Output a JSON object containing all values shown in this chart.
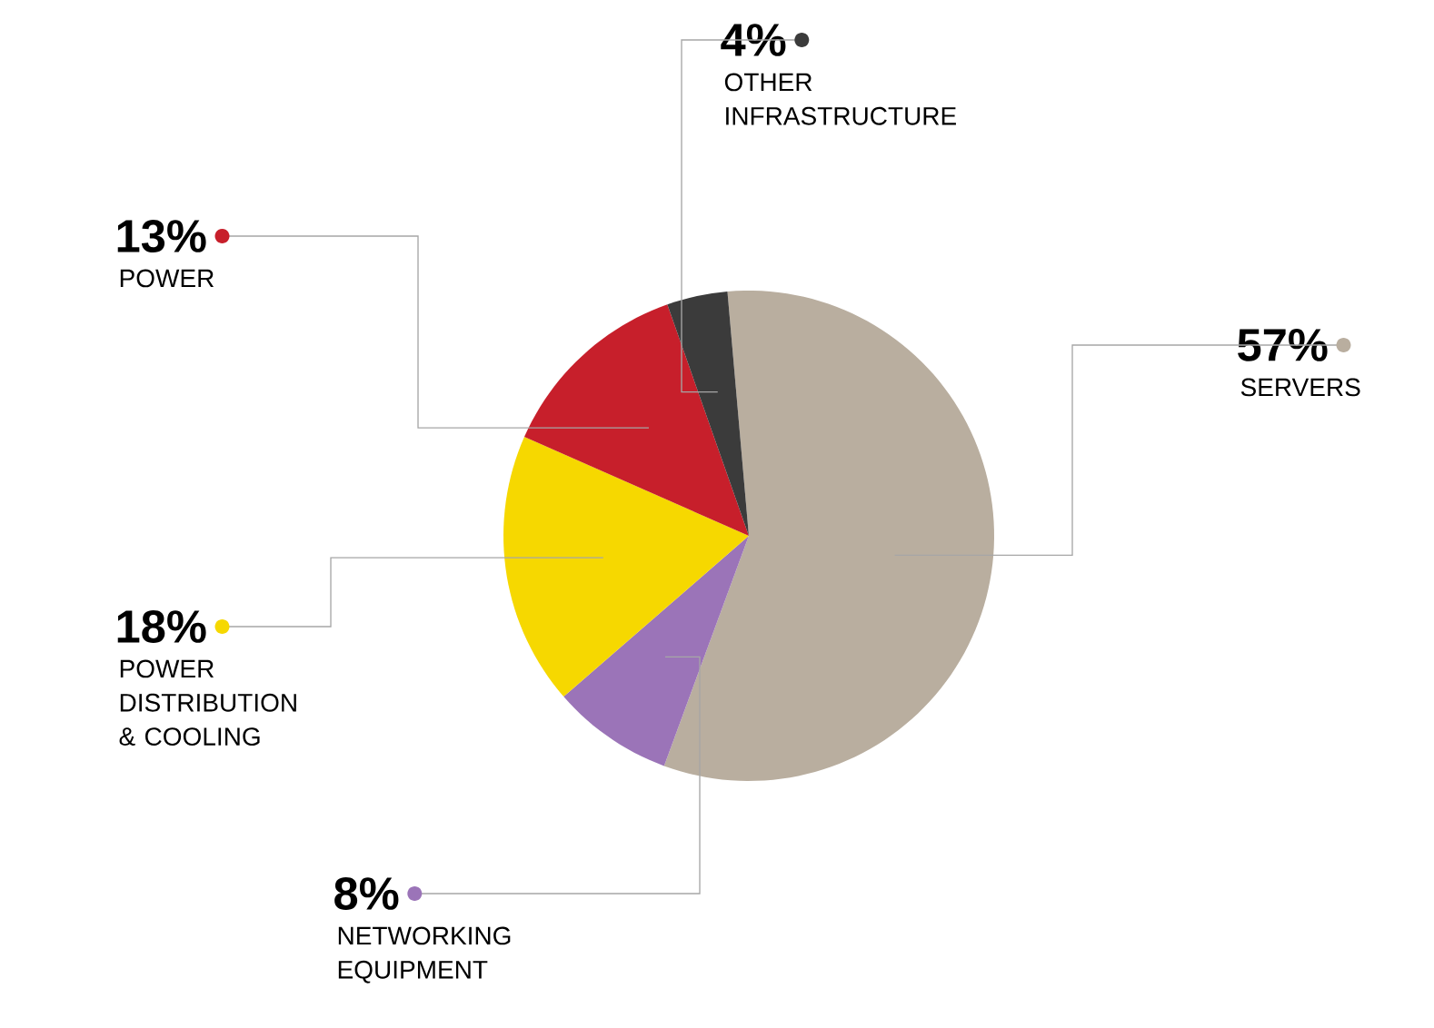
{
  "chart_data": {
    "type": "pie",
    "categories": [
      "SERVERS",
      "NETWORKING EQUIPMENT",
      "POWER DISTRIBUTION & COOLING",
      "POWER",
      "OTHER INFRASTRUCTURE"
    ],
    "values": [
      57,
      8,
      18,
      13,
      4
    ],
    "value_labels": [
      "57%",
      "8%",
      "18%",
      "13%",
      "4%"
    ],
    "colors": [
      "#b9ae9f",
      "#9b74b8",
      "#f6d800",
      "#c71f2b",
      "#3b3b3b"
    ],
    "legend": "left"
  }
}
